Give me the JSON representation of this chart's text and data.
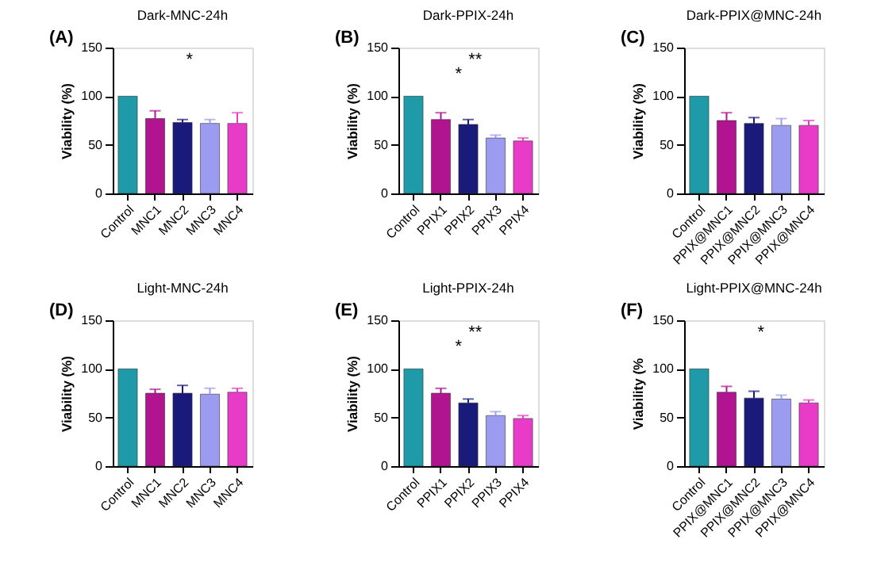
{
  "chart_data": [
    {
      "type": "bar",
      "title": "Dark-MNC-24h",
      "ylabel": "Viability (%)",
      "categories": [
        "Control",
        "MNC1",
        "MNC2",
        "MNC3",
        "MNC4"
      ],
      "values": [
        100,
        77,
        73,
        72,
        72
      ],
      "errors": [
        null,
        [
          77,
          85
        ],
        [
          73,
          76
        ],
        [
          72,
          76
        ],
        [
          72,
          83
        ]
      ],
      "colors": [
        "#1f9aa8",
        "#b0148f",
        "#1a1a7a",
        "#9b9bf0",
        "#e83cc8"
      ],
      "ylim": [
        0,
        150
      ],
      "yticks": [
        0,
        50,
        100,
        150
      ],
      "grid": false,
      "annotations": [
        "(A)",
        "*"
      ]
    },
    {
      "type": "bar",
      "title": "Dark-PPIX-24h",
      "ylabel": "Viability (%)",
      "categories": [
        "Control",
        "PPIX1",
        "PPIX2",
        "PPIX3",
        "PPIX4"
      ],
      "values": [
        100,
        76,
        71,
        57,
        54
      ],
      "errors": [
        null,
        [
          76,
          83
        ],
        [
          71,
          76
        ],
        [
          57,
          60
        ],
        [
          54,
          57
        ]
      ],
      "colors": [
        "#1f9aa8",
        "#b0148f",
        "#1a1a7a",
        "#9b9bf0",
        "#e83cc8"
      ],
      "ylim": [
        0,
        150
      ],
      "yticks": [
        0,
        50,
        100,
        150
      ],
      "grid": false,
      "annotations": [
        "(B)",
        "**",
        "*"
      ]
    },
    {
      "type": "bar",
      "title": "Dark-PPIX@MNC-24h",
      "ylabel": "Viability (%)",
      "categories": [
        "Control",
        "PPIX@MNC1",
        "PPIX@MNC2",
        "PPIX@MNC3",
        "PPIX@MNC4"
      ],
      "values": [
        100,
        75,
        72,
        70,
        70
      ],
      "errors": [
        null,
        [
          75,
          83
        ],
        [
          72,
          78
        ],
        [
          70,
          77
        ],
        [
          70,
          75
        ]
      ],
      "colors": [
        "#1f9aa8",
        "#b0148f",
        "#1a1a7a",
        "#9b9bf0",
        "#e83cc8"
      ],
      "ylim": [
        0,
        150
      ],
      "yticks": [
        0,
        50,
        100,
        150
      ],
      "grid": false,
      "annotations": [
        "(C)"
      ]
    },
    {
      "type": "bar",
      "title": "Light-MNC-24h",
      "ylabel": "Viability (%)",
      "categories": [
        "Control",
        "MNC1",
        "MNC2",
        "MNC3",
        "MNC4"
      ],
      "values": [
        100,
        75,
        75,
        74,
        76
      ],
      "errors": [
        null,
        [
          75,
          79
        ],
        [
          75,
          83
        ],
        [
          74,
          80
        ],
        [
          76,
          80
        ]
      ],
      "colors": [
        "#1f9aa8",
        "#b0148f",
        "#1a1a7a",
        "#9b9bf0",
        "#e83cc8"
      ],
      "ylim": [
        0,
        150
      ],
      "yticks": [
        0,
        50,
        100,
        150
      ],
      "grid": false,
      "annotations": [
        "(D)"
      ]
    },
    {
      "type": "bar",
      "title": "Light-PPIX-24h",
      "ylabel": "Viability (%)",
      "categories": [
        "Control",
        "PPIX1",
        "PPIX2",
        "PPIX3",
        "PPIX4"
      ],
      "values": [
        100,
        75,
        65,
        52,
        49
      ],
      "errors": [
        null,
        [
          75,
          80
        ],
        [
          65,
          69
        ],
        [
          52,
          56
        ],
        [
          49,
          52
        ]
      ],
      "colors": [
        "#1f9aa8",
        "#b0148f",
        "#1a1a7a",
        "#9b9bf0",
        "#e83cc8"
      ],
      "ylim": [
        0,
        150
      ],
      "yticks": [
        0,
        50,
        100,
        150
      ],
      "grid": false,
      "annotations": [
        "(E)",
        "**",
        "*"
      ]
    },
    {
      "type": "bar",
      "title": "Light-PPIX@MNC-24h",
      "ylabel": "Viability (%",
      "categories": [
        "Control",
        "PPIX@MNC1",
        "PPIX@MNC2",
        "PPIX@MNC3",
        "PPIX@MNC4"
      ],
      "values": [
        100,
        76,
        70,
        69,
        65
      ],
      "errors": [
        null,
        [
          76,
          82
        ],
        [
          70,
          77
        ],
        [
          69,
          73
        ],
        [
          65,
          68
        ]
      ],
      "colors": [
        "#1f9aa8",
        "#b0148f",
        "#1a1a7a",
        "#9b9bf0",
        "#e83cc8"
      ],
      "ylim": [
        0,
        150
      ],
      "yticks": [
        0,
        50,
        100,
        150
      ],
      "grid": false,
      "annotations": [
        "(F)",
        "*"
      ]
    }
  ]
}
